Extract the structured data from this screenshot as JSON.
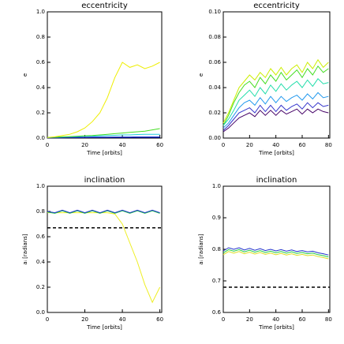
{
  "chart_data": [
    {
      "type": "line",
      "title": "eccentricity",
      "x_label": "Time [orbits]",
      "y_label": "e",
      "xlim": [
        0,
        61
      ],
      "ylim": [
        0,
        1
      ],
      "xticks": [
        0,
        20,
        40,
        60
      ],
      "yticks": [
        {
          "value": 0,
          "label": "0.0"
        },
        {
          "value": 0.2,
          "label": "0.2"
        },
        {
          "value": 0.4,
          "label": "0.4"
        },
        {
          "value": 0.6,
          "label": "0.6"
        },
        {
          "value": 0.8,
          "label": "0.8"
        },
        {
          "value": 1,
          "label": "1.0"
        }
      ],
      "x": [
        0,
        4,
        8,
        12,
        16,
        20,
        24,
        28,
        32,
        36,
        40,
        44,
        48,
        52,
        56,
        60
      ],
      "series": [
        {
          "color": "#000066",
          "values": [
            0.002,
            0.002,
            0.002,
            0.003,
            0.003,
            0.003,
            0.003,
            0.003,
            0.003,
            0.003,
            0.003,
            0.003,
            0.003,
            0.003,
            0.003,
            0.003
          ]
        },
        {
          "color": "#2244dd",
          "values": [
            0.004,
            0.005,
            0.006,
            0.006,
            0.007,
            0.007,
            0.008,
            0.008,
            0.008,
            0.009,
            0.009,
            0.009,
            0.01,
            0.01,
            0.01,
            0.01
          ]
        },
        {
          "color": "#22ccdd",
          "values": [
            0.005,
            0.006,
            0.008,
            0.01,
            0.012,
            0.015,
            0.015,
            0.018,
            0.02,
            0.022,
            0.025,
            0.025,
            0.028,
            0.03,
            0.03,
            0.03
          ]
        },
        {
          "color": "#44dd22",
          "values": [
            0.005,
            0.007,
            0.01,
            0.012,
            0.015,
            0.018,
            0.02,
            0.025,
            0.03,
            0.035,
            0.04,
            0.045,
            0.05,
            0.055,
            0.065,
            0.075
          ]
        },
        {
          "color": "#eeee00",
          "values": [
            0.005,
            0.01,
            0.02,
            0.03,
            0.05,
            0.08,
            0.13,
            0.2,
            0.32,
            0.48,
            0.6,
            0.56,
            0.58,
            0.55,
            0.57,
            0.6
          ]
        }
      ]
    },
    {
      "type": "line",
      "title": "eccentricity",
      "x_label": "Time [orbits]",
      "y_label": "e",
      "xlim": [
        0,
        81
      ],
      "ylim": [
        0,
        0.1
      ],
      "xticks": [
        0,
        20,
        40,
        60,
        80
      ],
      "yticks": [
        {
          "value": 0,
          "label": "0.00"
        },
        {
          "value": 0.02,
          "label": "0.02"
        },
        {
          "value": 0.04,
          "label": "0.04"
        },
        {
          "value": 0.06,
          "label": "0.06"
        },
        {
          "value": 0.08,
          "label": "0.08"
        },
        {
          "value": 0.1,
          "label": "0.10"
        }
      ],
      "x": [
        0,
        4,
        8,
        12,
        16,
        20,
        24,
        28,
        32,
        36,
        40,
        44,
        48,
        52,
        56,
        60,
        64,
        68,
        72,
        76,
        80
      ],
      "series": [
        {
          "color": "#ccee00",
          "values": [
            0.012,
            0.02,
            0.03,
            0.04,
            0.045,
            0.05,
            0.046,
            0.052,
            0.048,
            0.055,
            0.05,
            0.056,
            0.05,
            0.055,
            0.058,
            0.052,
            0.06,
            0.055,
            0.062,
            0.056,
            0.06
          ]
        },
        {
          "color": "#44dd22",
          "values": [
            0.01,
            0.018,
            0.028,
            0.036,
            0.042,
            0.045,
            0.04,
            0.048,
            0.043,
            0.05,
            0.045,
            0.052,
            0.046,
            0.05,
            0.054,
            0.048,
            0.055,
            0.05,
            0.057,
            0.052,
            0.055
          ]
        },
        {
          "color": "#22ddaa",
          "values": [
            0.01,
            0.015,
            0.022,
            0.03,
            0.034,
            0.038,
            0.033,
            0.04,
            0.035,
            0.042,
            0.037,
            0.043,
            0.038,
            0.042,
            0.045,
            0.04,
            0.046,
            0.041,
            0.047,
            0.043,
            0.044
          ]
        },
        {
          "color": "#2299ee",
          "values": [
            0.008,
            0.012,
            0.018,
            0.024,
            0.028,
            0.03,
            0.026,
            0.032,
            0.027,
            0.033,
            0.028,
            0.033,
            0.029,
            0.032,
            0.034,
            0.03,
            0.035,
            0.031,
            0.036,
            0.032,
            0.033
          ]
        },
        {
          "color": "#3333cc",
          "values": [
            0.006,
            0.01,
            0.015,
            0.02,
            0.022,
            0.024,
            0.02,
            0.026,
            0.021,
            0.026,
            0.021,
            0.026,
            0.022,
            0.025,
            0.027,
            0.023,
            0.028,
            0.024,
            0.028,
            0.025,
            0.026
          ]
        },
        {
          "color": "#440066",
          "values": [
            0.005,
            0.008,
            0.012,
            0.016,
            0.018,
            0.02,
            0.017,
            0.022,
            0.018,
            0.022,
            0.018,
            0.022,
            0.019,
            0.021,
            0.023,
            0.019,
            0.023,
            0.02,
            0.023,
            0.021,
            0.02
          ]
        }
      ]
    },
    {
      "type": "line",
      "title": "inclination",
      "x_label": "Time [orbits]",
      "y_label": "aᵢ [radians]",
      "xlim": [
        0,
        61
      ],
      "ylim": [
        0,
        1
      ],
      "xticks": [
        0,
        20,
        40,
        60
      ],
      "yticks": [
        {
          "value": 0,
          "label": "0.0"
        },
        {
          "value": 0.2,
          "label": "0.2"
        },
        {
          "value": 0.4,
          "label": "0.4"
        },
        {
          "value": 0.6,
          "label": "0.6"
        },
        {
          "value": 0.8,
          "label": "0.8"
        },
        {
          "value": 1,
          "label": "1.0"
        }
      ],
      "hline": 0.67,
      "x": [
        0,
        4,
        8,
        12,
        16,
        20,
        24,
        28,
        32,
        36,
        40,
        44,
        48,
        52,
        56,
        60
      ],
      "series": [
        {
          "color": "#eeee22",
          "values": [
            0.79,
            0.79,
            0.79,
            0.79,
            0.79,
            0.79,
            0.79,
            0.79,
            0.79,
            0.78,
            0.7,
            0.55,
            0.4,
            0.22,
            0.08,
            0.2
          ]
        },
        {
          "color": "#22cc44",
          "values": [
            0.795,
            0.785,
            0.805,
            0.785,
            0.805,
            0.785,
            0.805,
            0.785,
            0.805,
            0.785,
            0.805,
            0.785,
            0.805,
            0.785,
            0.805,
            0.785
          ]
        },
        {
          "color": "#2233cc",
          "values": [
            0.8,
            0.79,
            0.81,
            0.79,
            0.81,
            0.79,
            0.81,
            0.79,
            0.81,
            0.79,
            0.81,
            0.79,
            0.81,
            0.79,
            0.81,
            0.79
          ]
        }
      ]
    },
    {
      "type": "line",
      "title": "inclination",
      "x_label": "Time [orbits]",
      "y_label": "aᵢ [radians]",
      "xlim": [
        0,
        81
      ],
      "ylim": [
        0.6,
        1
      ],
      "xticks": [
        0,
        20,
        40,
        60,
        80
      ],
      "yticks": [
        0.6,
        0.7,
        0.8,
        0.9,
        {
          "value": 1,
          "label": "1.0"
        }
      ],
      "hline": 0.68,
      "x": [
        0,
        4,
        8,
        12,
        16,
        20,
        24,
        28,
        32,
        36,
        40,
        44,
        48,
        52,
        56,
        60,
        64,
        68,
        72,
        76,
        80
      ],
      "series": [
        {
          "color": "#dddd22",
          "values": [
            0.783,
            0.793,
            0.788,
            0.793,
            0.786,
            0.791,
            0.785,
            0.79,
            0.784,
            0.788,
            0.783,
            0.787,
            0.782,
            0.786,
            0.781,
            0.784,
            0.78,
            0.782,
            0.777,
            0.774,
            0.77
          ]
        },
        {
          "color": "#22cc44",
          "values": [
            0.789,
            0.799,
            0.794,
            0.799,
            0.792,
            0.797,
            0.791,
            0.796,
            0.79,
            0.794,
            0.789,
            0.793,
            0.788,
            0.792,
            0.787,
            0.79,
            0.786,
            0.788,
            0.783,
            0.78,
            0.776
          ]
        },
        {
          "color": "#2233cc",
          "values": [
            0.795,
            0.805,
            0.8,
            0.805,
            0.798,
            0.803,
            0.797,
            0.802,
            0.796,
            0.8,
            0.795,
            0.799,
            0.794,
            0.798,
            0.793,
            0.796,
            0.792,
            0.794,
            0.789,
            0.786,
            0.782
          ]
        }
      ]
    }
  ]
}
